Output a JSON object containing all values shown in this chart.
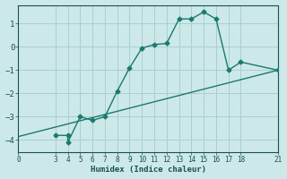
{
  "xlabel": "Humidex (Indice chaleur)",
  "ylabel": "",
  "background_color": "#cce8e8",
  "grid_color": "#aacece",
  "line_color": "#1a7a6e",
  "x_ticks": [
    0,
    3,
    4,
    5,
    6,
    7,
    8,
    9,
    10,
    11,
    12,
    13,
    14,
    15,
    16,
    17,
    18,
    21
  ],
  "xlim": [
    0,
    21
  ],
  "ylim": [
    -4.5,
    1.8
  ],
  "y_ticks": [
    -4,
    -3,
    -2,
    -1,
    0,
    1
  ],
  "curve_x": [
    3,
    4,
    4,
    5,
    6,
    7,
    8,
    9,
    10,
    11,
    12,
    13,
    14,
    15,
    16,
    17,
    18,
    21
  ],
  "curve_y": [
    -3.8,
    -3.8,
    -4.1,
    -3.0,
    -3.15,
    -3.0,
    -1.9,
    -0.9,
    -0.05,
    0.1,
    0.15,
    1.2,
    1.2,
    1.5,
    1.2,
    -1.0,
    -0.65,
    -1.0
  ],
  "line_x": [
    0,
    21
  ],
  "line_y": [
    -3.85,
    -1.0
  ],
  "marker": "D",
  "marker_size": 2.5,
  "line_width": 1.0
}
